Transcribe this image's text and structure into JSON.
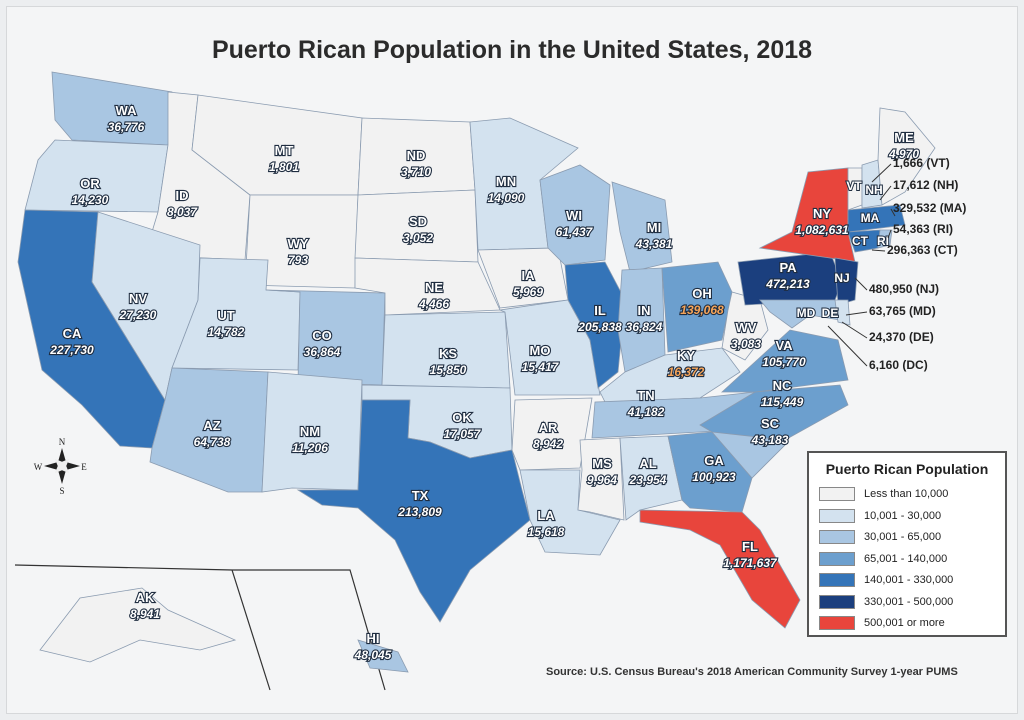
{
  "title": "Puerto Rican Population in the United States, 2018",
  "source": "Source: U.S. Census Bureau's 2018 American Community Survey 1-year PUMS",
  "legend": {
    "title": "Puerto Rican Population",
    "items": [
      {
        "label": "Less than 10,000",
        "color": "#f2f2f2"
      },
      {
        "label": "10,001 - 30,000",
        "color": "#d3e2ef"
      },
      {
        "label": "30,001 - 65,000",
        "color": "#a9c6e2"
      },
      {
        "label": "65,001 - 140,000",
        "color": "#6c9fce"
      },
      {
        "label": "140,001 - 330,000",
        "color": "#3474b8"
      },
      {
        "label": "330,001 - 500,000",
        "color": "#1b3f7e"
      },
      {
        "label": "500,001 or more",
        "color": "#e8453c"
      }
    ]
  },
  "states": [
    {
      "abbr": "WA",
      "value": "36,776",
      "cls": 2
    },
    {
      "abbr": "OR",
      "value": "14,230",
      "cls": 1
    },
    {
      "abbr": "CA",
      "value": "227,730",
      "cls": 4
    },
    {
      "abbr": "ID",
      "value": "8,037",
      "cls": 0
    },
    {
      "abbr": "NV",
      "value": "27,230",
      "cls": 1
    },
    {
      "abbr": "MT",
      "value": "1,801",
      "cls": 0
    },
    {
      "abbr": "WY",
      "value": "793",
      "cls": 0
    },
    {
      "abbr": "UT",
      "value": "14,782",
      "cls": 1
    },
    {
      "abbr": "CO",
      "value": "36,864",
      "cls": 2
    },
    {
      "abbr": "AZ",
      "value": "64,738",
      "cls": 2
    },
    {
      "abbr": "NM",
      "value": "11,206",
      "cls": 1
    },
    {
      "abbr": "ND",
      "value": "3,710",
      "cls": 0
    },
    {
      "abbr": "SD",
      "value": "3,052",
      "cls": 0
    },
    {
      "abbr": "NE",
      "value": "4,466",
      "cls": 0
    },
    {
      "abbr": "KS",
      "value": "15,850",
      "cls": 1
    },
    {
      "abbr": "OK",
      "value": "17,057",
      "cls": 1
    },
    {
      "abbr": "TX",
      "value": "213,809",
      "cls": 4
    },
    {
      "abbr": "MN",
      "value": "14,090",
      "cls": 1
    },
    {
      "abbr": "IA",
      "value": "5,969",
      "cls": 0
    },
    {
      "abbr": "MO",
      "value": "15,417",
      "cls": 1
    },
    {
      "abbr": "AR",
      "value": "8,942",
      "cls": 0
    },
    {
      "abbr": "LA",
      "value": "15,618",
      "cls": 1
    },
    {
      "abbr": "WI",
      "value": "61,437",
      "cls": 2
    },
    {
      "abbr": "IL",
      "value": "205,838",
      "cls": 4
    },
    {
      "abbr": "MI",
      "value": "43,381",
      "cls": 2
    },
    {
      "abbr": "IN",
      "value": "36,824",
      "cls": 2
    },
    {
      "abbr": "OH",
      "value": "139,068",
      "cls": 3
    },
    {
      "abbr": "KY",
      "value": "16,372",
      "cls": 1
    },
    {
      "abbr": "TN",
      "value": "41,182",
      "cls": 2
    },
    {
      "abbr": "MS",
      "value": "9,964",
      "cls": 0
    },
    {
      "abbr": "AL",
      "value": "23,954",
      "cls": 1
    },
    {
      "abbr": "GA",
      "value": "100,923",
      "cls": 3
    },
    {
      "abbr": "FL",
      "value": "1,171,637",
      "cls": 6
    },
    {
      "abbr": "SC",
      "value": "43,183",
      "cls": 2
    },
    {
      "abbr": "NC",
      "value": "115,449",
      "cls": 3
    },
    {
      "abbr": "VA",
      "value": "105,770",
      "cls": 3
    },
    {
      "abbr": "WV",
      "value": "3,083",
      "cls": 0
    },
    {
      "abbr": "PA",
      "value": "472,213",
      "cls": 5
    },
    {
      "abbr": "NY",
      "value": "1,082,631",
      "cls": 6
    },
    {
      "abbr": "ME",
      "value": "4,970",
      "cls": 0
    },
    {
      "abbr": "AK",
      "value": "8,941",
      "cls": 0
    },
    {
      "abbr": "HI",
      "value": "48,045",
      "cls": 2
    }
  ],
  "small_state_labels": [
    "VT",
    "NH",
    "MA",
    "CT",
    "RI",
    "NJ",
    "MD",
    "DE"
  ],
  "callouts": [
    {
      "abbr": "VT",
      "text": "1,666 (VT)"
    },
    {
      "abbr": "NH",
      "text": "17,612 (NH)"
    },
    {
      "abbr": "MA",
      "text": "329,532 (MA)"
    },
    {
      "abbr": "RI",
      "text": "54,363 (RI)"
    },
    {
      "abbr": "CT",
      "text": "296,363 (CT)"
    },
    {
      "abbr": "NJ",
      "text": "480,950 (NJ)"
    },
    {
      "abbr": "MD",
      "text": "63,765 (MD)"
    },
    {
      "abbr": "DE",
      "text": "24,370 (DE)"
    },
    {
      "abbr": "DC",
      "text": "6,160 (DC)"
    }
  ],
  "compass": {
    "n": "N",
    "e": "E",
    "s": "S",
    "w": "W"
  },
  "icons": {
    "compass": "compass-rose-icon"
  }
}
